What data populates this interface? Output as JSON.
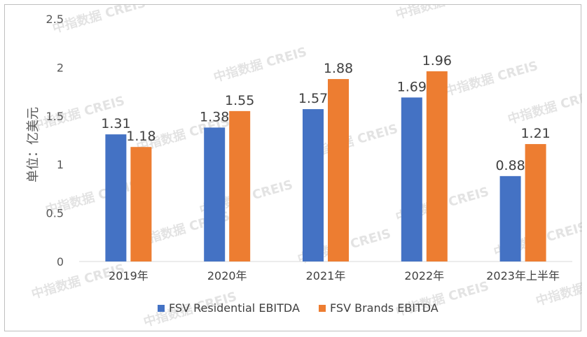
{
  "watermark_text": "中指数据 CREIS",
  "chart_data": {
    "type": "bar",
    "categories": [
      "2019年",
      "2020年",
      "2021年",
      "2022年",
      "2023年上半年"
    ],
    "series": [
      {
        "name": "FSV Residential EBITDA",
        "color": "#4472c4",
        "values": [
          1.31,
          1.38,
          1.57,
          1.69,
          0.88
        ]
      },
      {
        "name": "FSV Brands EBITDA",
        "color": "#ed7d31",
        "values": [
          1.18,
          1.55,
          1.88,
          1.96,
          1.21
        ]
      }
    ],
    "data_labels": [
      [
        "1.31",
        "1.38",
        "1.57",
        "1.69",
        "0.88"
      ],
      [
        "1.18",
        "1.55",
        "1.88",
        "1.96",
        "1.21"
      ]
    ],
    "ylabel": "单位：亿美元",
    "ylim": [
      0,
      2.5
    ],
    "yticks": [
      0,
      0.5,
      1,
      1.5,
      2,
      2.5
    ],
    "ytick_labels": [
      "0",
      "0.5",
      "1",
      "1.5",
      "2",
      "2.5"
    ],
    "grid": false,
    "legend": "bottom"
  }
}
